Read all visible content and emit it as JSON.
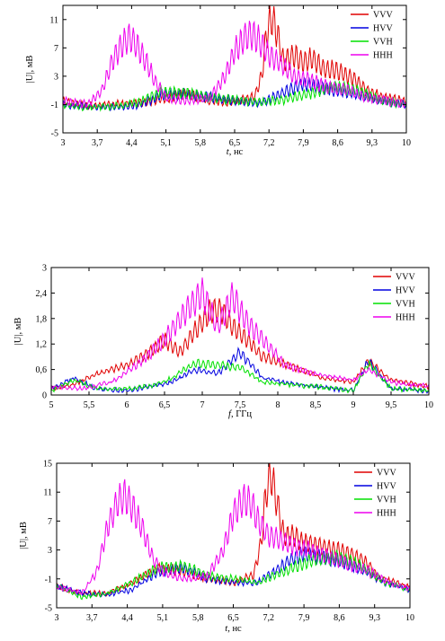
{
  "figure": {
    "legend_names": [
      "VVV",
      "HVV",
      "VVH",
      "HHH"
    ],
    "colors": {
      "VVV": "#e00000",
      "HVV": "#0000e0",
      "VVH": "#00e000",
      "HHH": "#ee00ee"
    }
  },
  "chart_data": [
    {
      "type": "line",
      "xlabel": {
        "var": "t",
        "rest": ", нс"
      },
      "ylabel": "|U|, мВ",
      "xlim": [
        3,
        10
      ],
      "ylim": [
        -5,
        13
      ],
      "xticks": [
        "3",
        "3,7",
        "4,4",
        "5,1",
        "5,8",
        "6,5",
        "7,2",
        "7,9",
        "8,6",
        "9,3",
        "10"
      ],
      "yticks": [
        "-5",
        "-1",
        "3",
        "7",
        "11"
      ],
      "legend_position": "top-right",
      "series": [
        {
          "name": "VVV",
          "x": [
            3.0,
            3.5,
            4.0,
            4.5,
            5.0,
            5.5,
            6.0,
            6.5,
            6.9,
            7.05,
            7.15,
            7.25,
            7.35,
            7.5,
            7.7,
            7.9,
            8.1,
            8.3,
            8.6,
            8.9,
            9.2,
            9.5,
            10.0
          ],
          "y": [
            -0.5,
            -1.2,
            -1.0,
            -0.8,
            -0.2,
            0.5,
            -0.5,
            -0.6,
            0.0,
            3.0,
            9.0,
            11.3,
            9.5,
            5.0,
            6.0,
            5.0,
            5.5,
            4.0,
            3.8,
            2.8,
            1.0,
            0.0,
            -0.5
          ]
        },
        {
          "name": "HVV",
          "x": [
            3.0,
            3.5,
            4.0,
            4.5,
            5.0,
            5.5,
            6.0,
            6.5,
            7.0,
            7.3,
            7.6,
            7.9,
            8.2,
            8.6,
            9.0,
            9.5,
            10.0
          ],
          "y": [
            -1.0,
            -1.3,
            -1.4,
            -1.2,
            0.3,
            0.5,
            0.0,
            -0.5,
            -0.8,
            0.0,
            1.0,
            2.0,
            1.5,
            1.0,
            0.5,
            -0.5,
            -1.0
          ]
        },
        {
          "name": "VVH",
          "x": [
            3.0,
            3.5,
            4.0,
            4.5,
            5.0,
            5.5,
            6.0,
            6.5,
            7.0,
            7.5,
            8.0,
            8.5,
            9.0,
            9.5,
            10.0
          ],
          "y": [
            -1.0,
            -1.4,
            -1.3,
            -0.8,
            0.8,
            0.6,
            0.0,
            -0.3,
            -0.7,
            -0.3,
            0.5,
            1.5,
            1.0,
            -0.5,
            -1.0
          ]
        },
        {
          "name": "HHH",
          "x": [
            3.0,
            3.5,
            3.8,
            4.0,
            4.2,
            4.35,
            4.5,
            4.7,
            4.9,
            5.1,
            5.5,
            6.0,
            6.3,
            6.5,
            6.7,
            6.85,
            7.0,
            7.2,
            7.4,
            7.7,
            8.0,
            8.4,
            8.8,
            9.2,
            9.6,
            10.0
          ],
          "y": [
            -0.5,
            -1.0,
            1.0,
            5.0,
            7.5,
            8.5,
            7.5,
            5.0,
            2.0,
            0.0,
            -0.5,
            0.0,
            3.0,
            6.5,
            8.5,
            9.0,
            8.0,
            6.0,
            5.0,
            3.0,
            2.5,
            1.5,
            1.0,
            0.0,
            -0.5,
            -1.0
          ]
        }
      ]
    },
    {
      "type": "line",
      "xlabel": {
        "var": "f",
        "rest": ", ГГц"
      },
      "ylabel": "|U|, мВ",
      "xlim": [
        5,
        10
      ],
      "ylim": [
        0,
        3
      ],
      "xticks": [
        "5",
        "5,5",
        "6",
        "6,5",
        "7",
        "7,5",
        "8",
        "8,5",
        "9",
        "9,5",
        "10"
      ],
      "yticks": [
        "0",
        "0,6",
        "1,2",
        "1,8",
        "2,4",
        "3"
      ],
      "legend_position": "top-right",
      "series": [
        {
          "name": "VVV",
          "x": [
            5.0,
            5.3,
            5.6,
            6.0,
            6.3,
            6.5,
            6.7,
            6.9,
            7.1,
            7.25,
            7.4,
            7.6,
            7.8,
            8.0,
            8.3,
            8.6,
            9.0,
            9.2,
            9.5,
            10.0
          ],
          "y": [
            0.15,
            0.25,
            0.5,
            0.7,
            1.0,
            1.3,
            1.0,
            1.5,
            1.95,
            2.0,
            1.6,
            1.3,
            0.9,
            0.8,
            0.6,
            0.4,
            0.3,
            0.8,
            0.35,
            0.2
          ]
        },
        {
          "name": "HVV",
          "x": [
            5.0,
            5.3,
            5.6,
            6.0,
            6.3,
            6.6,
            6.9,
            7.2,
            7.5,
            7.8,
            8.1,
            8.5,
            9.0,
            9.2,
            9.5,
            10.0
          ],
          "y": [
            0.15,
            0.4,
            0.15,
            0.1,
            0.2,
            0.3,
            0.6,
            0.5,
            1.0,
            0.4,
            0.3,
            0.2,
            0.1,
            0.8,
            0.15,
            0.1
          ]
        },
        {
          "name": "VVH",
          "x": [
            5.0,
            5.3,
            5.6,
            6.0,
            6.3,
            6.6,
            6.9,
            7.2,
            7.5,
            7.8,
            8.1,
            8.5,
            9.0,
            9.2,
            9.5,
            10.0
          ],
          "y": [
            0.1,
            0.35,
            0.15,
            0.15,
            0.2,
            0.4,
            0.75,
            0.7,
            0.65,
            0.3,
            0.25,
            0.2,
            0.1,
            0.75,
            0.15,
            0.1
          ]
        },
        {
          "name": "HHH",
          "x": [
            5.0,
            5.4,
            5.8,
            6.2,
            6.5,
            6.8,
            7.0,
            7.2,
            7.4,
            7.6,
            7.8,
            8.1,
            8.5,
            9.0,
            9.2,
            9.5,
            10.0
          ],
          "y": [
            0.2,
            0.15,
            0.3,
            0.8,
            1.3,
            2.0,
            2.4,
            1.6,
            2.3,
            1.7,
            1.3,
            0.7,
            0.5,
            0.35,
            0.6,
            0.3,
            0.2
          ]
        }
      ]
    },
    {
      "type": "line",
      "xlabel": {
        "var": "t",
        "rest": ", нс"
      },
      "ylabel": "|U|, мВ",
      "xlim": [
        3,
        10
      ],
      "ylim": [
        -5,
        15
      ],
      "xticks": [
        "3",
        "3,7",
        "4,4",
        "5,1",
        "5,8",
        "6,5",
        "7,2",
        "7,9",
        "8,6",
        "9,3",
        "10"
      ],
      "yticks": [
        "-5",
        "-1",
        "3",
        "7",
        "11",
        "15"
      ],
      "legend_position": "top-right",
      "series": [
        {
          "name": "VVV",
          "x": [
            3.0,
            3.5,
            4.0,
            4.5,
            5.0,
            5.5,
            6.0,
            6.5,
            6.9,
            7.05,
            7.15,
            7.25,
            7.35,
            7.5,
            7.7,
            7.9,
            8.2,
            8.5,
            8.8,
            9.1,
            9.4,
            10.0
          ],
          "y": [
            -2.0,
            -3.0,
            -3.0,
            -1.5,
            0.5,
            0.0,
            -1.0,
            -1.5,
            -0.5,
            4.0,
            11.0,
            13.5,
            10.0,
            5.0,
            5.0,
            4.0,
            3.5,
            3.0,
            2.5,
            1.5,
            -1.0,
            -2.0
          ]
        },
        {
          "name": "HVV",
          "x": [
            3.0,
            3.5,
            4.0,
            4.5,
            5.0,
            5.5,
            6.0,
            6.5,
            7.0,
            7.3,
            7.6,
            7.9,
            8.2,
            8.6,
            9.0,
            9.5,
            10.0
          ],
          "y": [
            -2.0,
            -3.0,
            -3.2,
            -2.5,
            0.0,
            0.5,
            -1.0,
            -1.5,
            -1.5,
            0.0,
            1.5,
            2.5,
            2.0,
            1.5,
            0.5,
            -1.5,
            -2.5
          ]
        },
        {
          "name": "VVH",
          "x": [
            3.0,
            3.5,
            4.0,
            4.5,
            5.0,
            5.5,
            6.0,
            6.5,
            7.0,
            7.5,
            8.0,
            8.5,
            9.0,
            9.5,
            10.0
          ],
          "y": [
            -2.0,
            -3.5,
            -3.0,
            -1.5,
            0.5,
            0.8,
            -0.5,
            -1.0,
            -1.5,
            0.0,
            1.5,
            2.0,
            1.0,
            -1.5,
            -2.5
          ]
        },
        {
          "name": "HHH",
          "x": [
            3.0,
            3.5,
            3.8,
            4.0,
            4.2,
            4.35,
            4.5,
            4.7,
            4.9,
            5.1,
            5.5,
            6.0,
            6.3,
            6.5,
            6.7,
            6.85,
            7.0,
            7.2,
            7.4,
            7.7,
            8.0,
            8.4,
            8.8,
            9.2,
            9.6,
            10.0
          ],
          "y": [
            -2.0,
            -3.0,
            0.0,
            6.0,
            9.5,
            10.5,
            9.0,
            6.0,
            2.0,
            0.0,
            -1.0,
            -0.5,
            3.0,
            8.0,
            10.0,
            9.5,
            7.0,
            5.0,
            4.5,
            3.5,
            3.0,
            2.0,
            1.0,
            0.0,
            -1.5,
            -2.5
          ]
        }
      ]
    }
  ]
}
